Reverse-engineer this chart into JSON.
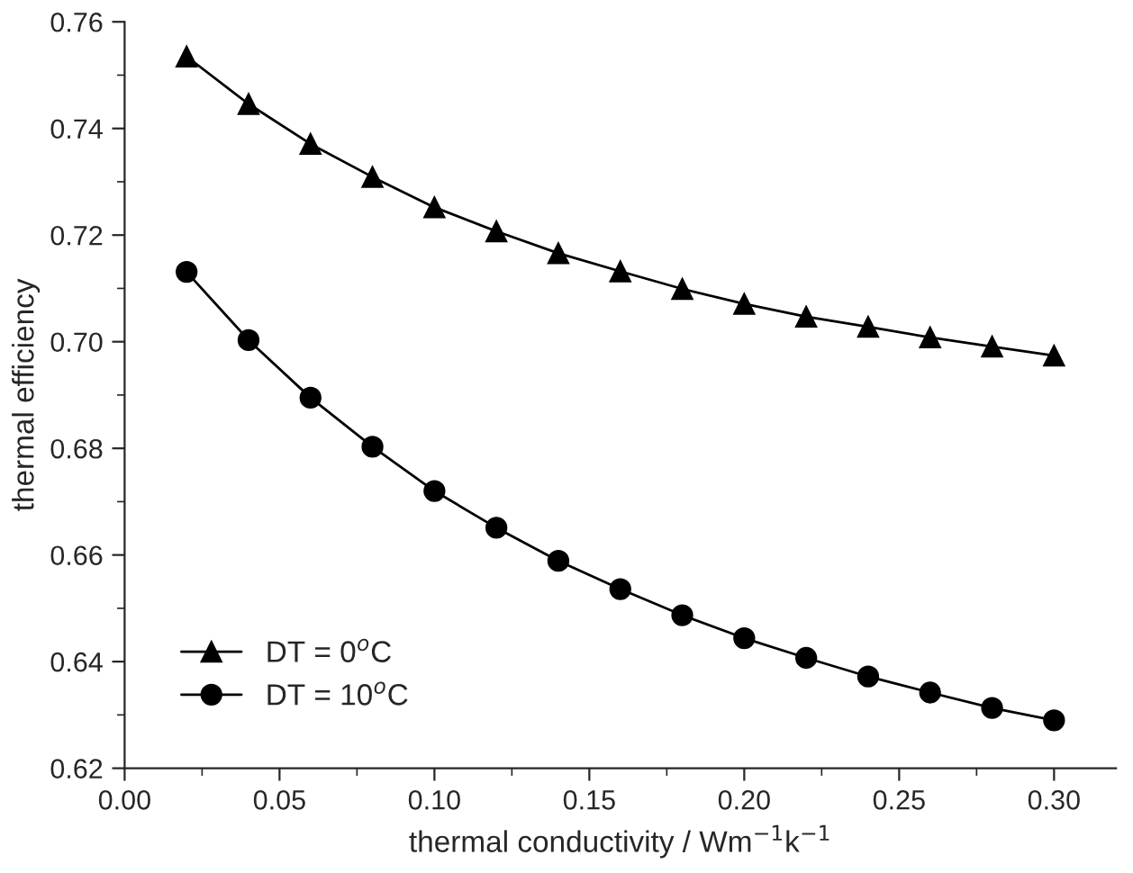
{
  "chart_data": {
    "type": "line",
    "xlabel": "thermal conductivity / Wm$^{−1}$k$^{−1}$",
    "ylabel": "thermal efficiency",
    "x": [
      0.02,
      0.04,
      0.06,
      0.08,
      0.1,
      0.12,
      0.14,
      0.16,
      0.18,
      0.2,
      0.22,
      0.24,
      0.26,
      0.28,
      0.3
    ],
    "series": [
      {
        "name": "DT = 0$^{o}$C",
        "color": "#000000",
        "marker": "triangle",
        "values": [
          0.7535,
          0.7446,
          0.7371,
          0.7309,
          0.7252,
          0.7207,
          0.7166,
          0.7132,
          0.7099,
          0.7071,
          0.7047,
          0.7028,
          0.7008,
          0.6991,
          0.6974
        ]
      },
      {
        "name": "DT = 10$^{o}$C",
        "color": "#000000",
        "marker": "circle",
        "values": [
          0.7131,
          0.7003,
          0.6895,
          0.6803,
          0.672,
          0.6651,
          0.6589,
          0.6536,
          0.6487,
          0.6444,
          0.6407,
          0.6372,
          0.6342,
          0.6313,
          0.629
        ]
      }
    ],
    "xlim": [
      0.0,
      0.32
    ],
    "xticks": [
      {
        "value": 0.0,
        "label": "0.00"
      },
      {
        "value": 0.05,
        "label": "0.05"
      },
      {
        "value": 0.1,
        "label": "0.10"
      },
      {
        "value": 0.15,
        "label": "0.15"
      },
      {
        "value": 0.2,
        "label": "0.20"
      },
      {
        "value": 0.25,
        "label": "0.25"
      },
      {
        "value": 0.3,
        "label": "0.30"
      }
    ],
    "ylim": [
      0.62,
      0.76
    ],
    "yticks": [
      0.62,
      0.64,
      0.66,
      0.68,
      {
        "value": 0.7,
        "label": "0.70"
      },
      0.72,
      0.74,
      0.76
    ],
    "legend": "bottom left",
    "grid": false,
    "line_style": "solid"
  }
}
